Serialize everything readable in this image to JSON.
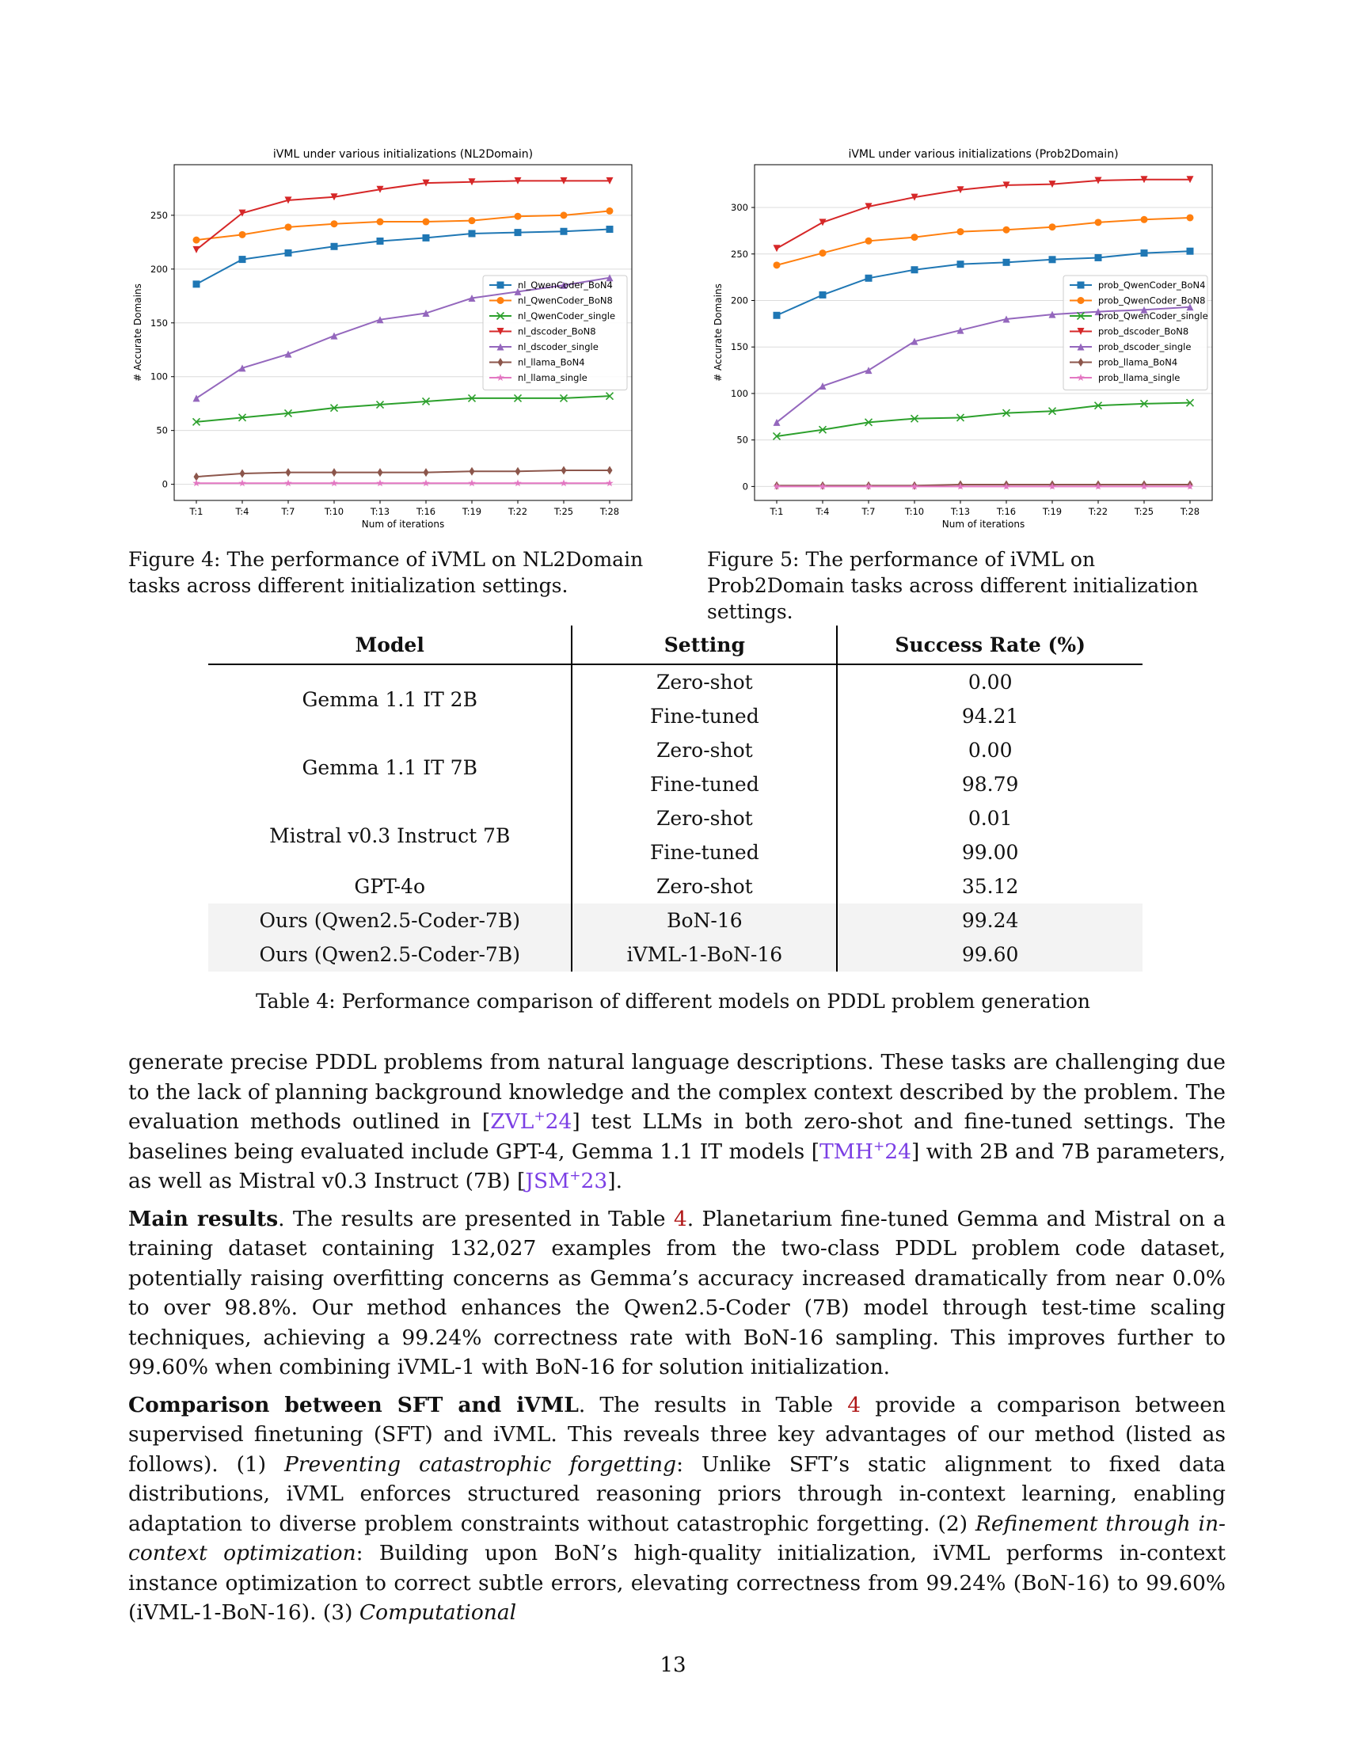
{
  "figures": [
    {
      "chart_data": {
        "type": "line",
        "title": "iVML under various initializations (NL2Domain)",
        "xlabel": "Num of iterations",
        "ylabel": "# Accurate Domains",
        "categories": [
          "T:1",
          "T:4",
          "T:7",
          "T:10",
          "T:13",
          "T:16",
          "T:19",
          "T:22",
          "T:25",
          "T:28"
        ],
        "ylim": [
          -15,
          297
        ],
        "yticks": [
          0,
          50,
          100,
          150,
          200,
          250
        ],
        "grid": "horizontal",
        "legend": "right",
        "series": [
          {
            "name": "nl_QwenCoder_BoN4",
            "color": "#1f77b4",
            "marker": "square",
            "values": [
              186,
              209,
              215,
              221,
              226,
              229,
              233,
              234,
              235,
              237
            ]
          },
          {
            "name": "nl_QwenCoder_BoN8",
            "color": "#ff7f0e",
            "marker": "circle",
            "values": [
              227,
              232,
              239,
              242,
              244,
              244,
              245,
              249,
              250,
              254
            ]
          },
          {
            "name": "nl_QwenCoder_single",
            "color": "#2ca02c",
            "marker": "x",
            "values": [
              58,
              62,
              66,
              71,
              74,
              77,
              80,
              80,
              80,
              82
            ]
          },
          {
            "name": "nl_dscoder_BoN8",
            "color": "#d62728",
            "marker": "triangle-down",
            "values": [
              218,
              252,
              264,
              267,
              274,
              280,
              281,
              282,
              282,
              282
            ]
          },
          {
            "name": "nl_dscoder_single",
            "color": "#9467bd",
            "marker": "triangle-up",
            "values": [
              80,
              108,
              121,
              138,
              153,
              159,
              173,
              179,
              185,
              192
            ]
          },
          {
            "name": "nl_llama_BoN4",
            "color": "#8c564b",
            "marker": "diamond",
            "values": [
              7,
              10,
              11,
              11,
              11,
              11,
              12,
              12,
              13,
              13
            ]
          },
          {
            "name": "nl_llama_single",
            "color": "#e377c2",
            "marker": "star",
            "values": [
              1,
              1,
              1,
              1,
              1,
              1,
              1,
              1,
              1,
              1
            ]
          }
        ]
      },
      "caption_label": "Figure 4:",
      "caption_text": "The performance of iVML on NL2Domain tasks across different initialization settings."
    },
    {
      "chart_data": {
        "type": "line",
        "title": "iVML under various initializations (Prob2Domain)",
        "xlabel": "Num of iterations",
        "ylabel": "# Accurate Domains",
        "categories": [
          "T:1",
          "T:4",
          "T:7",
          "T:10",
          "T:13",
          "T:16",
          "T:19",
          "T:22",
          "T:25",
          "T:28"
        ],
        "ylim": [
          -15,
          346
        ],
        "yticks": [
          0,
          50,
          100,
          150,
          200,
          250,
          300
        ],
        "grid": "horizontal",
        "legend": "right",
        "series": [
          {
            "name": "prob_QwenCoder_BoN4",
            "color": "#1f77b4",
            "marker": "square",
            "values": [
              184,
              206,
              224,
              233,
              239,
              241,
              244,
              246,
              251,
              253
            ]
          },
          {
            "name": "prob_QwenCoder_BoN8",
            "color": "#ff7f0e",
            "marker": "circle",
            "values": [
              238,
              251,
              264,
              268,
              274,
              276,
              279,
              284,
              287,
              289
            ]
          },
          {
            "name": "prob_QwenCoder_single",
            "color": "#2ca02c",
            "marker": "x",
            "values": [
              54,
              61,
              69,
              73,
              74,
              79,
              81,
              87,
              89,
              90
            ]
          },
          {
            "name": "prob_dscoder_BoN8",
            "color": "#d62728",
            "marker": "triangle-down",
            "values": [
              256,
              284,
              301,
              311,
              319,
              324,
              325,
              329,
              330,
              330
            ]
          },
          {
            "name": "prob_dscoder_single",
            "color": "#9467bd",
            "marker": "triangle-up",
            "values": [
              69,
              108,
              125,
              156,
              168,
              180,
              185,
              188,
              190,
              193
            ]
          },
          {
            "name": "prob_llama_BoN4",
            "color": "#8c564b",
            "marker": "diamond",
            "values": [
              1,
              1,
              1,
              1,
              2,
              2,
              2,
              2,
              2,
              2
            ]
          },
          {
            "name": "prob_llama_single",
            "color": "#e377c2",
            "marker": "star",
            "values": [
              0,
              0,
              0,
              0,
              0,
              0,
              0,
              0,
              0,
              0
            ]
          }
        ]
      },
      "caption_label": "Figure 5:",
      "caption_text": "The performance of iVML on Prob2Domain tasks across different initialization settings."
    }
  ],
  "table": {
    "headers": [
      "Model",
      "Setting",
      "Success Rate (%)"
    ],
    "rows": [
      {
        "model": "Gemma 1.1 IT 2B",
        "setting": "Zero-shot",
        "rate": "0.00"
      },
      {
        "setting": "Fine-tuned",
        "rate": "94.21"
      },
      {
        "model": "Gemma 1.1 IT 7B",
        "setting": "Zero-shot",
        "rate": "0.00"
      },
      {
        "setting": "Fine-tuned",
        "rate": "98.79"
      },
      {
        "model": "Mistral v0.3 Instruct 7B",
        "setting": "Zero-shot",
        "rate": "0.01"
      },
      {
        "setting": "Fine-tuned",
        "rate": "99.00"
      },
      {
        "model": "GPT-4o",
        "setting": "Zero-shot",
        "rate": "35.12"
      },
      {
        "model": "Ours (Qwen2.5-Coder-7B)",
        "setting": "BoN-16",
        "rate": "99.24"
      },
      {
        "model": "Ours (Qwen2.5-Coder-7B)",
        "setting": "iVML-1-BoN-16",
        "rate": "99.60"
      }
    ],
    "caption": "Table 4: Performance comparison of different models on PDDL problem generation"
  },
  "para1": {
    "t1": "generate precise PDDL problems from natural language descriptions. These tasks are challenging due to the lack of planning background knowledge and the complex context described by the problem. The evaluation methods outlined in ",
    "c1a": "ZVL",
    "c1s": "+",
    "c1b": "24",
    "t2": " test LLMs in both zero-shot and fine-tuned settings. The baselines being evaluated include GPT-4, Gemma 1.1 IT models ",
    "c2a": "TMH",
    "c2s": "+",
    "c2b": "24",
    "t3": " with 2B and 7B parameters, as well as Mistral v0.3 Instruct (7B) ",
    "c3a": "JSM",
    "c3s": "+",
    "c3b": "23",
    "t4": "."
  },
  "para2": {
    "head": "Main results",
    "t1": ". The results are presented in Table ",
    "ref": "4",
    "t2": ". Planetarium fine-tuned Gemma and Mistral on a training dataset containing 132,027 examples from the two-class PDDL problem code dataset, potentially raising overfitting concerns as Gemma’s accuracy increased dramatically from near 0.0% to over 98.8%. Our method enhances the Qwen2.5-Coder (7B) model through test-time scaling techniques, achieving a 99.24% correctness rate with BoN-16 sampling. This improves further to 99.60% when combining iVML-1 with BoN-16 for solution initialization."
  },
  "para3": {
    "head": "Comparison between SFT and iVML",
    "t1": ". The results in Table ",
    "ref": "4",
    "t2": " provide a comparison between supervised finetuning (SFT) and iVML. This reveals three key advantages of our method (listed as follows). (1) ",
    "i1": "Preventing catastrophic forgetting",
    "t3": ": Unlike SFT’s static alignment to fixed data distributions, iVML enforces structured reasoning priors through in-context learning, enabling adaptation to diverse problem constraints without catastrophic forgetting. (2) ",
    "i2": "Refinement through in-context optimization",
    "t4": ": Building upon BoN’s high-quality initialization, iVML performs in-context instance optimization to correct subtle errors, elevating correctness from 99.24% (BoN-16) to 99.60% (iVML-1-BoN-16). (3) ",
    "i3": "Computational"
  },
  "page_number": "13"
}
